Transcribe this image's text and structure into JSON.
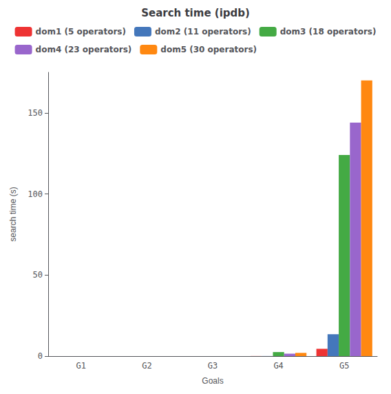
{
  "chart_data": {
    "type": "bar",
    "title": "Search time (ipdb)",
    "xlabel": "Goals",
    "ylabel": "search time (s)",
    "categories": [
      "G1",
      "G2",
      "G3",
      "G4",
      "G5"
    ],
    "series": [
      {
        "name": "dom1 (5 operators)",
        "color": "#EE3333",
        "values": [
          0.0,
          0.0,
          0.0,
          0.05,
          4.5
        ]
      },
      {
        "name": "dom2 (11 operators)",
        "color": "#4477BB",
        "values": [
          0.0,
          0.0,
          0.0,
          0.05,
          13.5
        ]
      },
      {
        "name": "dom3 (18 operators)",
        "color": "#44AA44",
        "values": [
          0.0,
          0.0,
          0.0,
          2.5,
          124.0
        ]
      },
      {
        "name": "dom4 (23 operators)",
        "color": "#9966CC",
        "values": [
          0.0,
          0.0,
          0.0,
          1.5,
          144.0
        ]
      },
      {
        "name": "dom5 (30 operators)",
        "color": "#FF8811",
        "values": [
          0.0,
          0.0,
          0.0,
          2.0,
          170.0
        ]
      }
    ],
    "ylim": [
      0,
      175
    ],
    "yticks": [
      0,
      50,
      100,
      150
    ],
    "grid": false,
    "legend": "upper center"
  }
}
